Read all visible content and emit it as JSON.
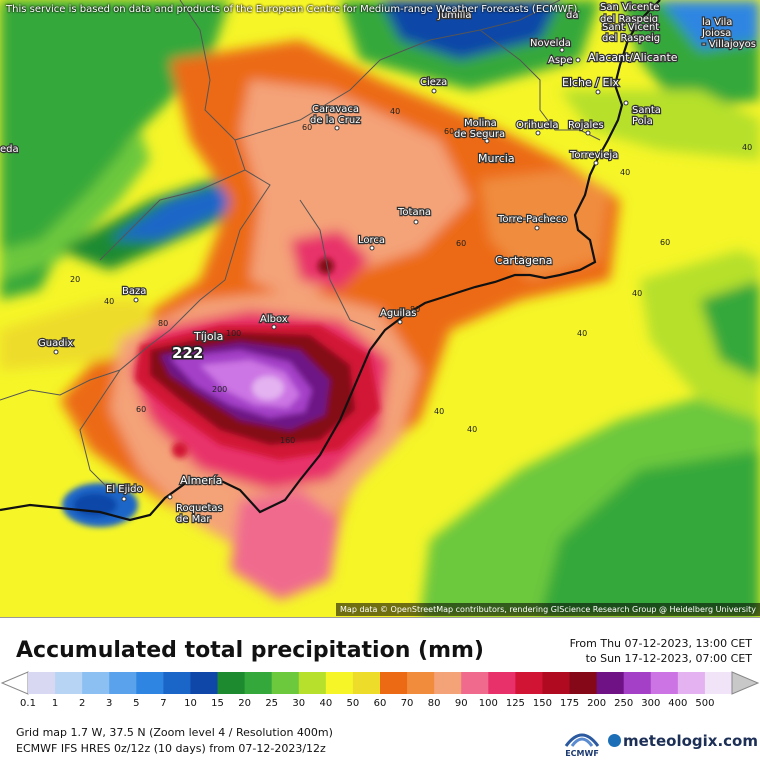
{
  "notice": "This service is based on data and products of the European Centre for Medium-range Weather Forecasts (ECMWF).",
  "attribution": "Map data © OpenStreetMap contributors, rendering GIScience Research Group @ Heidelberg University",
  "max_value_label": "222",
  "cities": [
    {
      "name": "Jumilla",
      "lines": [
        "Jumilla"
      ]
    },
    {
      "name": "San Vicente del Raspeig",
      "lines": [
        "San Vicente",
        "del Raspeig",
        "Sant Vicent",
        "del Raspeig"
      ]
    },
    {
      "name": "La Vila Joiosa",
      "lines": [
        "la Vila",
        "Joiosa",
        "- Villajoyos"
      ]
    },
    {
      "name": "Novelda",
      "lines": [
        "Novelda"
      ]
    },
    {
      "name": "Aspe",
      "lines": [
        "Aspe"
      ]
    },
    {
      "name": "Alacant/Alicante",
      "lines": [
        "Alacant/Alicante"
      ]
    },
    {
      "name": "Elche / Elx",
      "lines": [
        "Elche / Elx"
      ]
    },
    {
      "name": "Santa Pola",
      "lines": [
        "Santa",
        "Pola"
      ]
    },
    {
      "name": "Cieza",
      "lines": [
        "Cieza"
      ]
    },
    {
      "name": "Caravaca de la Cruz",
      "lines": [
        "Caravaca",
        "de la Cruz"
      ]
    },
    {
      "name": "Molina de Segura",
      "lines": [
        "Molina",
        "de Segura"
      ]
    },
    {
      "name": "Orihuela",
      "lines": [
        "Orihuela"
      ]
    },
    {
      "name": "Rojales",
      "lines": [
        "Rojales"
      ]
    },
    {
      "name": "Murcia",
      "lines": [
        "Murcia"
      ]
    },
    {
      "name": "Torrevieja",
      "lines": [
        "Torrevieja"
      ]
    },
    {
      "name": "Totana",
      "lines": [
        "Totana"
      ]
    },
    {
      "name": "Torre-Pacheco",
      "lines": [
        "Torre-Pacheco"
      ]
    },
    {
      "name": "Lorca",
      "lines": [
        "Lorca"
      ]
    },
    {
      "name": "Cartagena",
      "lines": [
        "Cartagena"
      ]
    },
    {
      "name": "Baza",
      "lines": [
        "Baza"
      ]
    },
    {
      "name": "Albox",
      "lines": [
        "Albox"
      ]
    },
    {
      "name": "Aguilas",
      "lines": [
        "Aguilas"
      ]
    },
    {
      "name": "Guadix",
      "lines": [
        "Guadix"
      ]
    },
    {
      "name": "Tíjola",
      "lines": [
        "Tíjola"
      ]
    },
    {
      "name": "El Ejido",
      "lines": [
        "El Ejido"
      ]
    },
    {
      "name": "Almería",
      "lines": [
        "Almería"
      ]
    },
    {
      "name": "Roquetas de Mar",
      "lines": [
        "Roquetas",
        "de Mar"
      ]
    },
    {
      "name": "Granada",
      "lines": [
        "eda"
      ]
    },
    {
      "name": "Elda",
      "lines": [
        "da"
      ]
    }
  ],
  "isolines": [
    "40",
    "60",
    "60",
    "40",
    "20",
    "40",
    "80",
    "100",
    "60",
    "80",
    "40",
    "60",
    "40",
    "40",
    "40",
    "200",
    "160",
    "60",
    "60",
    "40"
  ],
  "legend": {
    "title": "Accumulated total precipitation (mm)",
    "from": "From Thu 07-12-2023, 13:00 CET",
    "to": "to Sun 17-12-2023, 07:00 CET",
    "classes": [
      {
        "label": "0.1",
        "color": "#d8d8f2"
      },
      {
        "label": "1",
        "color": "#b8d4f4"
      },
      {
        "label": "2",
        "color": "#8cc0f2"
      },
      {
        "label": "3",
        "color": "#5aa2ec"
      },
      {
        "label": "5",
        "color": "#2e86e2"
      },
      {
        "label": "7",
        "color": "#1a66c8"
      },
      {
        "label": "10",
        "color": "#0e47a8"
      },
      {
        "label": "15",
        "color": "#1e8a30"
      },
      {
        "label": "20",
        "color": "#34a83a"
      },
      {
        "label": "25",
        "color": "#6cc83c"
      },
      {
        "label": "30",
        "color": "#b6e02c"
      },
      {
        "label": "40",
        "color": "#f5f528"
      },
      {
        "label": "50",
        "color": "#eedc2a"
      },
      {
        "label": "60",
        "color": "#ec6a14"
      },
      {
        "label": "70",
        "color": "#f08c3c"
      },
      {
        "label": "80",
        "color": "#f4a278"
      },
      {
        "label": "90",
        "color": "#f06a8e"
      },
      {
        "label": "100",
        "color": "#e8306a"
      },
      {
        "label": "125",
        "color": "#d21434"
      },
      {
        "label": "150",
        "color": "#b00a20"
      },
      {
        "label": "175",
        "color": "#840818"
      },
      {
        "label": "200",
        "color": "#6e1286"
      },
      {
        "label": "250",
        "color": "#a440c8"
      },
      {
        "label": "300",
        "color": "#cc74e4"
      },
      {
        "label": "400",
        "color": "#e4b2f0"
      },
      {
        "label": "500",
        "color": "#f2e4f8"
      }
    ],
    "overflow_color": "#c8c8c8",
    "underflow_color": "#ffffff"
  },
  "grid_info": "Grid map 1.7 W, 37.5 N (Zoom level 4 / Resolution 400m)",
  "model_info": "ECMWF IFS HRES 0z/12z (10 days) from 07-12-2023/12z",
  "logos": {
    "ecmwf": "ECMWF",
    "meteologix": "meteologix.com"
  }
}
